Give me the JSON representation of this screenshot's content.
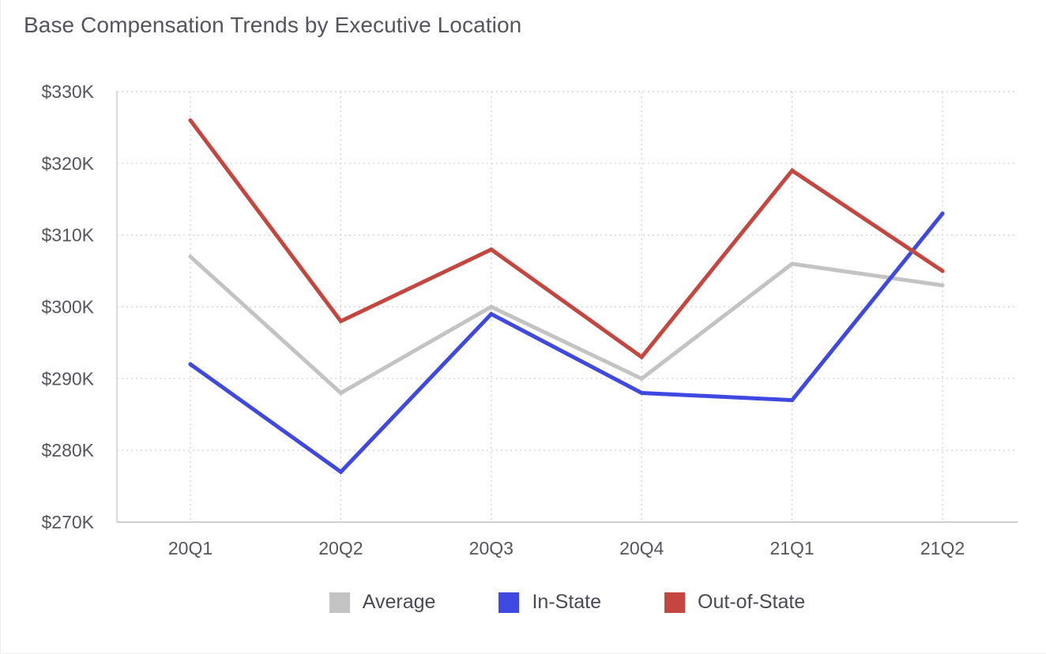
{
  "chart_data": {
    "type": "line",
    "title": "Base Compensation Trends by Executive Location",
    "xlabel": "",
    "ylabel": "",
    "categories": [
      "20Q1",
      "20Q2",
      "20Q3",
      "20Q4",
      "21Q1",
      "21Q2"
    ],
    "y_ticks": [
      "$270K",
      "$280K",
      "$290K",
      "$300K",
      "$310K",
      "$320K",
      "$330K"
    ],
    "ylim": [
      270000,
      330000
    ],
    "grid": true,
    "legend_position": "bottom",
    "series": [
      {
        "name": "Average",
        "color": "#c3c3c3",
        "values": [
          307000,
          288000,
          300000,
          290000,
          306000,
          303000
        ]
      },
      {
        "name": "In-State",
        "color": "#3f48e0",
        "values": [
          292000,
          277000,
          299000,
          288000,
          287000,
          313000
        ]
      },
      {
        "name": "Out-of-State",
        "color": "#c5463f",
        "values": [
          326000,
          298000,
          308000,
          293000,
          319000,
          305000
        ]
      }
    ]
  }
}
